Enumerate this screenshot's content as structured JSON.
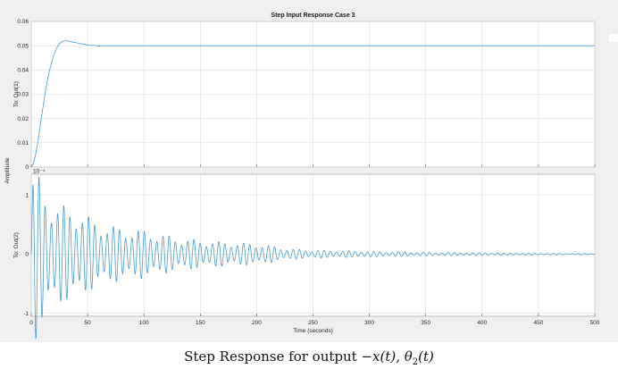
{
  "chart_data": {
    "title": "Step Input Response Case 3",
    "shared_ylabel": "Amplitude",
    "xlabel": "Time (seconds)",
    "xlim": [
      0,
      500
    ],
    "x_ticks": [
      0,
      50,
      100,
      150,
      200,
      250,
      300,
      350,
      400,
      450,
      500
    ],
    "line_color": "#4a9bd1",
    "subplots": [
      {
        "type": "line",
        "ylabel": "To: Out(1)",
        "ylim": [
          0,
          0.06
        ],
        "y_ticks": [
          0,
          0.01,
          0.02,
          0.03,
          0.04,
          0.05,
          0.06
        ],
        "series": [
          {
            "x": [
              0,
              2,
              4,
              6,
              8,
              10,
              12,
              14,
              16,
              18,
              20,
              22,
              24,
              26,
              28,
              30,
              32,
              34,
              36,
              38,
              40,
              44,
              48,
              52,
              56,
              60,
              65,
              70,
              80,
              90,
              100,
              120,
              150,
              200,
              300,
              400,
              500
            ],
            "values": [
              0,
              0.0015,
              0.0055,
              0.011,
              0.017,
              0.0235,
              0.0295,
              0.035,
              0.0395,
              0.043,
              0.0462,
              0.0485,
              0.0502,
              0.0513,
              0.0518,
              0.052,
              0.052,
              0.0519,
              0.0516,
              0.0514,
              0.0512,
              0.0508,
              0.0505,
              0.0502,
              0.0501,
              0.0499,
              0.05,
              0.05,
              0.05,
              0.05,
              0.05,
              0.05,
              0.05,
              0.05,
              0.05,
              0.05,
              0.05
            ]
          }
        ]
      },
      {
        "type": "line",
        "ylabel": "To: Out(2)",
        "exponent_label": "10⁻⁴",
        "ylim": [
          -1.05,
          1.35
        ],
        "y_ticks": [
          -1,
          0,
          1
        ],
        "oscillation": {
          "period": 5.5,
          "peaks": [
            [
              1,
              1.3
            ],
            [
              8,
              0.98
            ],
            [
              20,
              0.68
            ],
            [
              40,
              0.6
            ],
            [
              60,
              0.42
            ],
            [
              80,
              0.35
            ],
            [
              100,
              0.32
            ],
            [
              130,
              0.22
            ],
            [
              160,
              0.17
            ],
            [
              200,
              0.14
            ],
            [
              230,
              0.07
            ],
            [
              260,
              0.05
            ],
            [
              300,
              0.04
            ],
            [
              350,
              0.025
            ],
            [
              400,
              0.02
            ],
            [
              450,
              0.012
            ],
            [
              500,
              0.008
            ]
          ]
        }
      }
    ]
  },
  "caption": {
    "prefix": "Step Response for output ",
    "expr1": "−x(t), ",
    "expr2": "θ",
    "sub": "2",
    "expr3": "(t)"
  }
}
